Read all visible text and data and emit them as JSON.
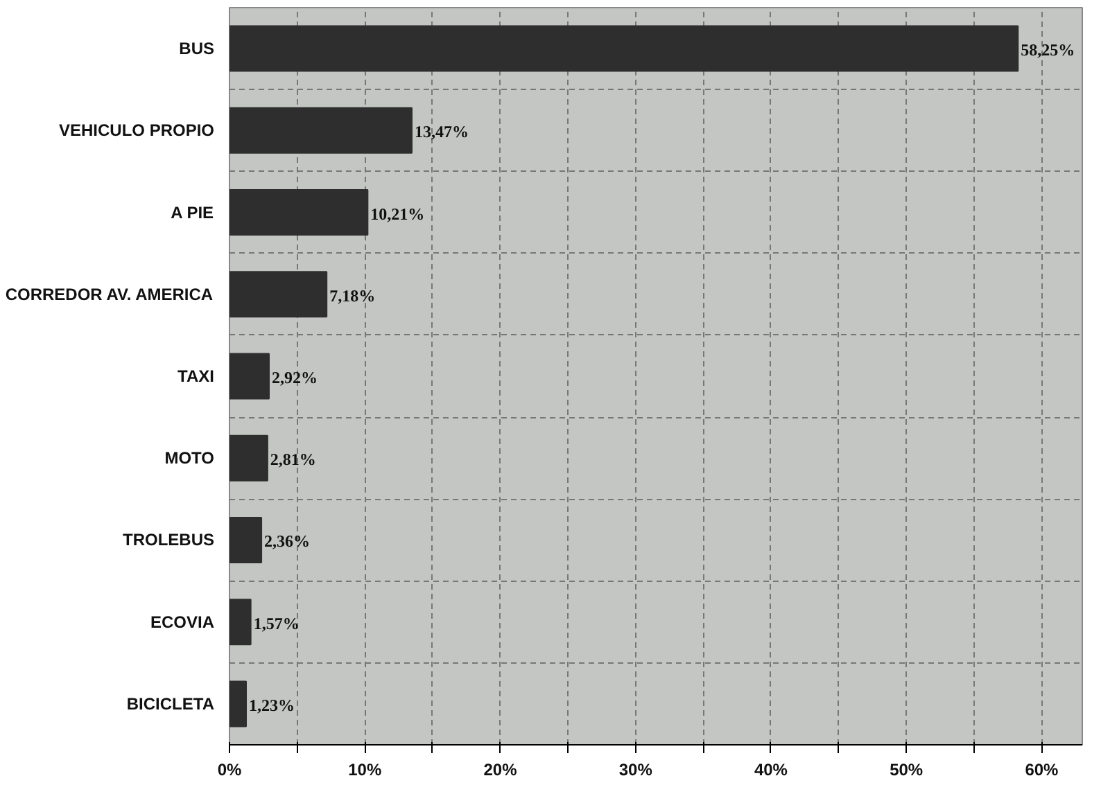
{
  "chart_data": {
    "type": "bar",
    "orientation": "horizontal",
    "categories": [
      "BUS",
      "VEHICULO PROPIO",
      "A PIE",
      "CORREDOR AV. AMERICA",
      "TAXI",
      "MOTO",
      "TROLEBUS",
      "ECOVIA",
      "BICICLETA"
    ],
    "values": [
      58.25,
      13.47,
      10.21,
      7.18,
      2.92,
      2.81,
      2.36,
      1.57,
      1.23
    ],
    "value_labels": [
      "58,25%",
      "13,47%",
      "10,21%",
      "7,18%",
      "2,92%",
      "2,81%",
      "2,36%",
      "1,57%",
      "1,23%"
    ],
    "color": "#2e2e2e",
    "xlim": [
      0,
      63
    ],
    "xticks": [
      {
        "value": 0,
        "label": "0%"
      },
      {
        "value": 5,
        "label": null
      },
      {
        "value": 10,
        "label": "10%"
      },
      {
        "value": 15,
        "label": null
      },
      {
        "value": 20,
        "label": "20%"
      },
      {
        "value": 25,
        "label": null
      },
      {
        "value": 30,
        "label": "30%"
      },
      {
        "value": 35,
        "label": null
      },
      {
        "value": 40,
        "label": "40%"
      },
      {
        "value": 45,
        "label": null
      },
      {
        "value": 50,
        "label": "50%"
      },
      {
        "value": 55,
        "label": null
      },
      {
        "value": 60,
        "label": "60%"
      }
    ],
    "grid": true
  }
}
